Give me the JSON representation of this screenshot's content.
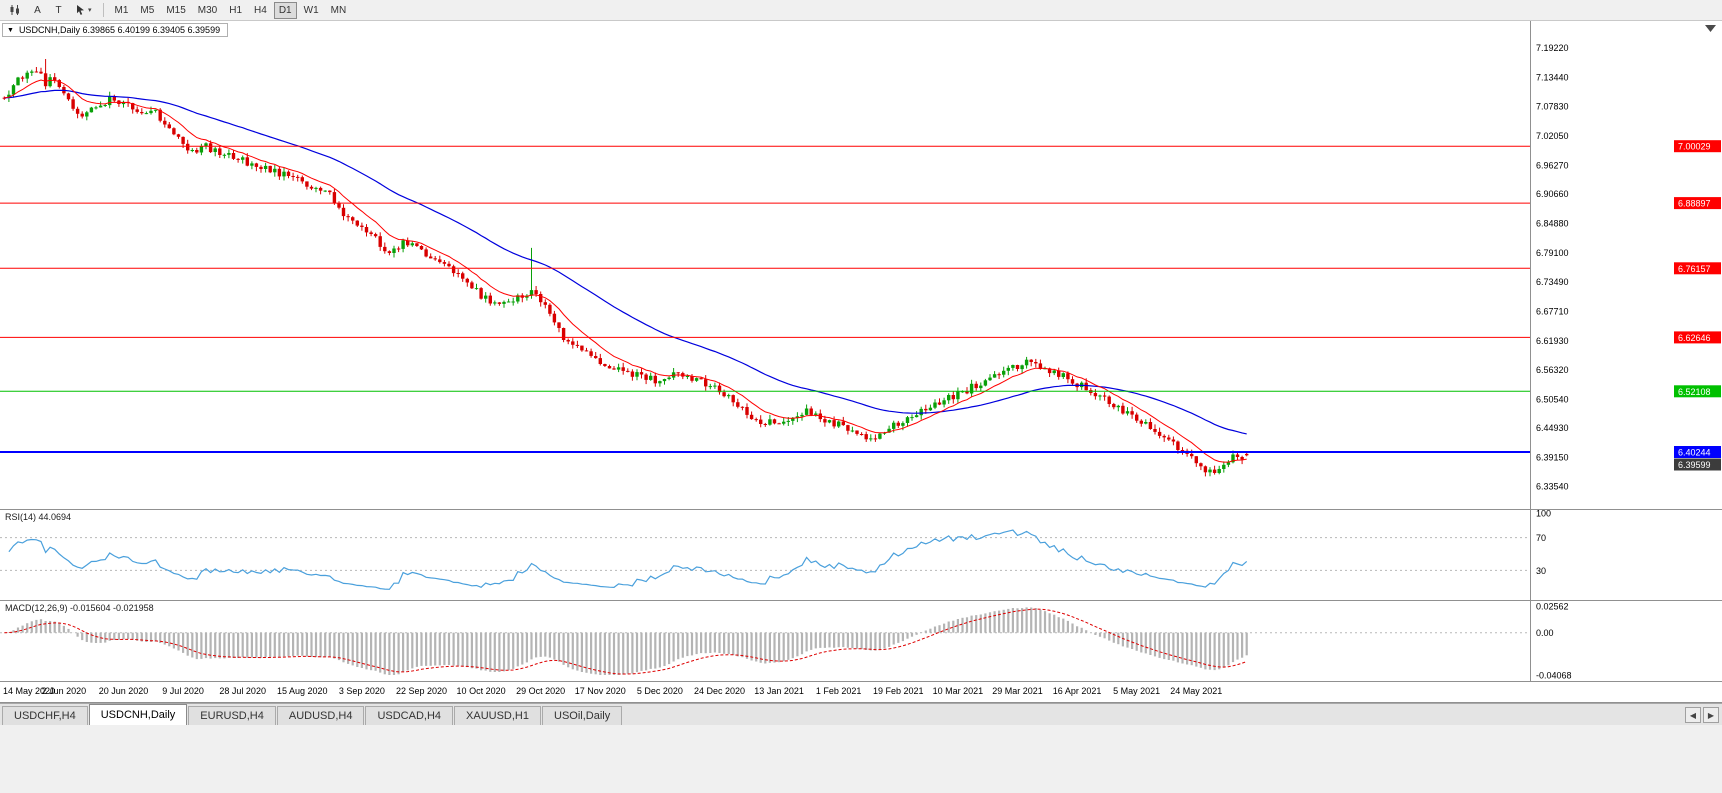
{
  "toolbar": {
    "annotate_label": "A",
    "text_tool_label": "T",
    "timeframes": [
      "M1",
      "M5",
      "M15",
      "M30",
      "H1",
      "H4",
      "D1",
      "W1",
      "MN"
    ],
    "active_timeframe": "D1",
    "icons": [
      "candlestick-chart-icon",
      "cursor-icon",
      "chevron-down-icon"
    ]
  },
  "chart_data": {
    "type": "candlestick",
    "symbol": "USDCNH",
    "timeframe": "Daily",
    "ohlc_label": "USDCNH,Daily 6.39865 6.40199 6.39405 6.39599",
    "last": {
      "open": 6.39865,
      "high": 6.40199,
      "low": 6.39405,
      "close": 6.39599
    },
    "y_ticks": [
      "7.19220",
      "7.13440",
      "7.07830",
      "7.02050",
      "6.96270",
      "6.90660",
      "6.84880",
      "6.79100",
      "6.73490",
      "6.67710",
      "6.61930",
      "6.56320",
      "6.50540",
      "6.44930",
      "6.39150",
      "6.33540"
    ],
    "price_top": 7.245,
    "price_bottom": 6.291,
    "x_dates": [
      "14 May 2020",
      "2 Jun 2020",
      "20 Jun 2020",
      "9 Jul 2020",
      "28 Jul 2020",
      "15 Aug 2020",
      "3 Sep 2020",
      "22 Sep 2020",
      "10 Oct 2020",
      "29 Oct 2020",
      "17 Nov 2020",
      "5 Dec 2020",
      "24 Dec 2020",
      "13 Jan 2021",
      "1 Feb 2021",
      "19 Feb 2021",
      "10 Mar 2021",
      "29 Mar 2021",
      "16 Apr 2021",
      "5 May 2021",
      "24 May 2021"
    ],
    "candles_per_label": 13,
    "num_candles": 272,
    "candle_up_color": "#09a009",
    "candle_down_color": "#d80000",
    "ma_fast": {
      "period": 10,
      "color": "#ff0000"
    },
    "ma_slow": {
      "period": 45,
      "color": "#0000dd"
    },
    "hlines": [
      {
        "price": 7.00029,
        "label": "7.00029",
        "color": "#ff0000",
        "width": 1
      },
      {
        "price": 6.88897,
        "label": "6.88897",
        "color": "#ff0000",
        "width": 1
      },
      {
        "price": 6.76157,
        "label": "6.76157",
        "color": "#ff0000",
        "width": 1
      },
      {
        "price": 6.62646,
        "label": "6.62646",
        "color": "#ff0000",
        "width": 1
      },
      {
        "price": 6.52108,
        "label": "6.52108",
        "color": "#00c000",
        "width": 1
      },
      {
        "price": 6.40244,
        "label": "6.40244",
        "color": "#0000ff",
        "width": 2
      }
    ],
    "bid_chip": {
      "price": 6.39599,
      "label": "6.39599",
      "color": "#3c3c3c"
    },
    "spikes": [
      {
        "t": 0.033,
        "extra_high": 0.025
      },
      {
        "t": 0.424,
        "extra_high": 0.075
      }
    ],
    "trend_anchors": [
      [
        0.0,
        7.095
      ],
      [
        0.012,
        7.13
      ],
      [
        0.026,
        7.15
      ],
      [
        0.033,
        7.122
      ],
      [
        0.04,
        7.135
      ],
      [
        0.048,
        7.11
      ],
      [
        0.055,
        7.07
      ],
      [
        0.065,
        7.062
      ],
      [
        0.075,
        7.08
      ],
      [
        0.085,
        7.092
      ],
      [
        0.096,
        7.088
      ],
      [
        0.108,
        7.068
      ],
      [
        0.12,
        7.072
      ],
      [
        0.132,
        7.04
      ],
      [
        0.143,
        7.005
      ],
      [
        0.152,
        6.992
      ],
      [
        0.162,
        7.0
      ],
      [
        0.175,
        6.985
      ],
      [
        0.191,
        6.972
      ],
      [
        0.205,
        6.962
      ],
      [
        0.22,
        6.948
      ],
      [
        0.239,
        6.93
      ],
      [
        0.252,
        6.916
      ],
      [
        0.262,
        6.905
      ],
      [
        0.272,
        6.862
      ],
      [
        0.287,
        6.845
      ],
      [
        0.297,
        6.824
      ],
      [
        0.31,
        6.792
      ],
      [
        0.322,
        6.812
      ],
      [
        0.335,
        6.795
      ],
      [
        0.348,
        6.778
      ],
      [
        0.362,
        6.752
      ],
      [
        0.375,
        6.725
      ],
      [
        0.382,
        6.712
      ],
      [
        0.392,
        6.698
      ],
      [
        0.403,
        6.688
      ],
      [
        0.413,
        6.702
      ],
      [
        0.424,
        6.712
      ],
      [
        0.43,
        6.705
      ],
      [
        0.44,
        6.668
      ],
      [
        0.45,
        6.628
      ],
      [
        0.46,
        6.608
      ],
      [
        0.47,
        6.598
      ],
      [
        0.478,
        6.58
      ],
      [
        0.488,
        6.572
      ],
      [
        0.498,
        6.56
      ],
      [
        0.51,
        6.552
      ],
      [
        0.526,
        6.542
      ],
      [
        0.538,
        6.556
      ],
      [
        0.55,
        6.548
      ],
      [
        0.562,
        6.538
      ],
      [
        0.574,
        6.524
      ],
      [
        0.586,
        6.502
      ],
      [
        0.598,
        6.478
      ],
      [
        0.61,
        6.462
      ],
      [
        0.621,
        6.458
      ],
      [
        0.632,
        6.472
      ],
      [
        0.645,
        6.482
      ],
      [
        0.657,
        6.47
      ],
      [
        0.669,
        6.458
      ],
      [
        0.68,
        6.445
      ],
      [
        0.692,
        6.432
      ],
      [
        0.702,
        6.428
      ],
      [
        0.71,
        6.442
      ],
      [
        0.717,
        6.458
      ],
      [
        0.728,
        6.472
      ],
      [
        0.74,
        6.486
      ],
      [
        0.752,
        6.498
      ],
      [
        0.765,
        6.512
      ],
      [
        0.778,
        6.528
      ],
      [
        0.79,
        6.545
      ],
      [
        0.8,
        6.558
      ],
      [
        0.8125,
        6.57
      ],
      [
        0.822,
        6.576
      ],
      [
        0.832,
        6.57
      ],
      [
        0.845,
        6.558
      ],
      [
        0.86,
        6.54
      ],
      [
        0.872,
        6.528
      ],
      [
        0.884,
        6.508
      ],
      [
        0.896,
        6.492
      ],
      [
        0.908,
        6.472
      ],
      [
        0.918,
        6.458
      ],
      [
        0.928,
        6.442
      ],
      [
        0.938,
        6.425
      ],
      [
        0.948,
        6.405
      ],
      [
        0.956,
        6.392
      ],
      [
        0.964,
        6.368
      ],
      [
        0.972,
        6.36
      ],
      [
        0.98,
        6.378
      ],
      [
        0.988,
        6.392
      ],
      [
        1.0,
        6.396
      ]
    ]
  },
  "rsi": {
    "label": "RSI(14) 44.0694",
    "period": 14,
    "value": 44.0694,
    "axis_labels": [
      "100",
      "70",
      "30"
    ],
    "upper_level": 70,
    "lower_level": 30,
    "line_color": "#4aa0dc"
  },
  "macd": {
    "label": "MACD(12,26,9) -0.015604 -0.021958",
    "fast": 12,
    "slow": 26,
    "signal": 9,
    "macd_value": -0.015604,
    "signal_value": -0.021958,
    "axis_labels": [
      "0.02562",
      "0.00",
      "-0.04068"
    ],
    "scale_max": 0.02562,
    "scale_min": -0.04068,
    "bar_color": "#b4b4b4",
    "signal_color": "#dd0000"
  },
  "tabs": {
    "items": [
      "USDCHF,H4",
      "USDCNH,Daily",
      "EURUSD,H4",
      "AUDUSD,H4",
      "USDCAD,H4",
      "XAUUSD,H1",
      "USOil,Daily"
    ],
    "active_index": 1
  }
}
